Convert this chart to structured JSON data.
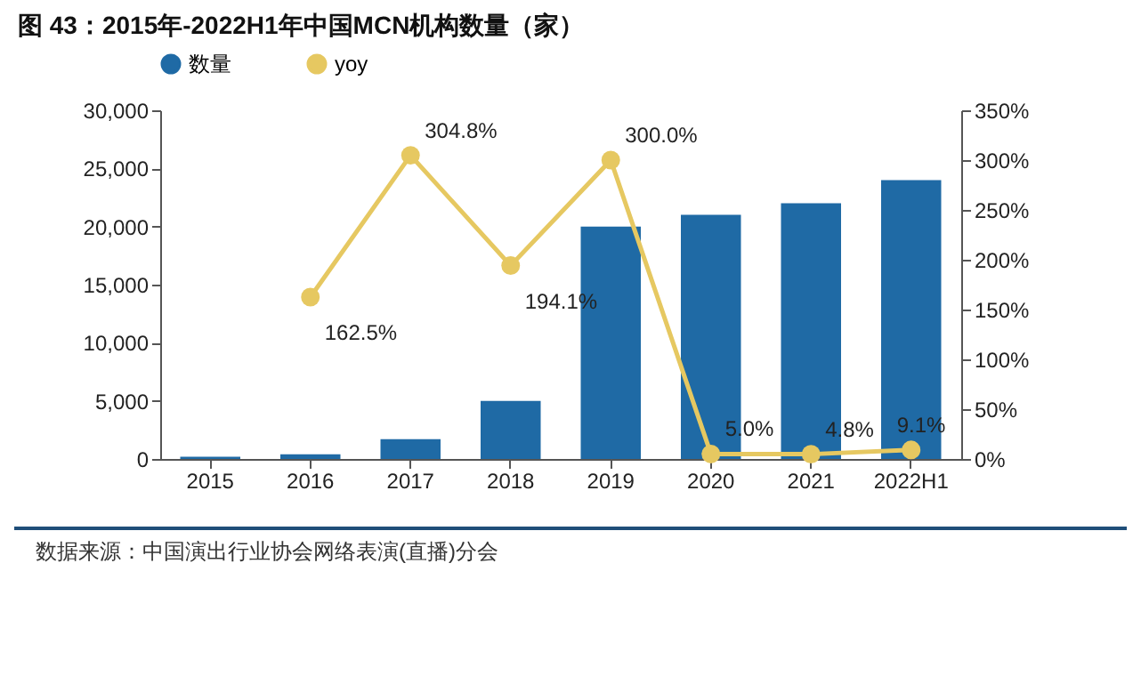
{
  "chart_data": {
    "type": "bar",
    "title": "图 43：2015年-2022H1年中国MCN机构数量（家）",
    "categories": [
      "2015",
      "2016",
      "2017",
      "2018",
      "2019",
      "2020",
      "2021",
      "2022H1"
    ],
    "series": [
      {
        "name": "数量",
        "color": "#1f6aa5",
        "values": [
          200,
          400,
          1700,
          5000,
          20000,
          21000,
          22000,
          24000
        ]
      },
      {
        "name": "yoy",
        "type": "line",
        "axis": "y2",
        "color": "#e6c861",
        "marker": "circle",
        "values": [
          null,
          162.5,
          304.8,
          194.1,
          300.0,
          5.0,
          4.8,
          9.1
        ],
        "value_labels": [
          null,
          "162.5%",
          "304.8%",
          "194.1%",
          "300.0%",
          "5.0%",
          "4.8%",
          "9.1%"
        ]
      }
    ],
    "ylim": [
      0,
      30000
    ],
    "yticks": [
      {
        "value": 0,
        "label": "0"
      },
      {
        "value": 5000,
        "label": "5,000"
      },
      {
        "value": 10000,
        "label": "10,000"
      },
      {
        "value": 15000,
        "label": "15,000"
      },
      {
        "value": 20000,
        "label": "20,000"
      },
      {
        "value": 25000,
        "label": "25,000"
      },
      {
        "value": 30000,
        "label": "30,000"
      }
    ],
    "y2lim": [
      0,
      350
    ],
    "y2ticks": [
      {
        "value": 0,
        "label": "0%"
      },
      {
        "value": 50,
        "label": "50%"
      },
      {
        "value": 100,
        "label": "100%"
      },
      {
        "value": 150,
        "label": "150%"
      },
      {
        "value": 200,
        "label": "200%"
      },
      {
        "value": 250,
        "label": "250%"
      },
      {
        "value": 300,
        "label": "300%"
      },
      {
        "value": 350,
        "label": "350%"
      }
    ],
    "grid": false,
    "legend": "top",
    "annotations": [
      "数据来源：中国演出行业协会网络表演(直播)分会"
    ]
  }
}
